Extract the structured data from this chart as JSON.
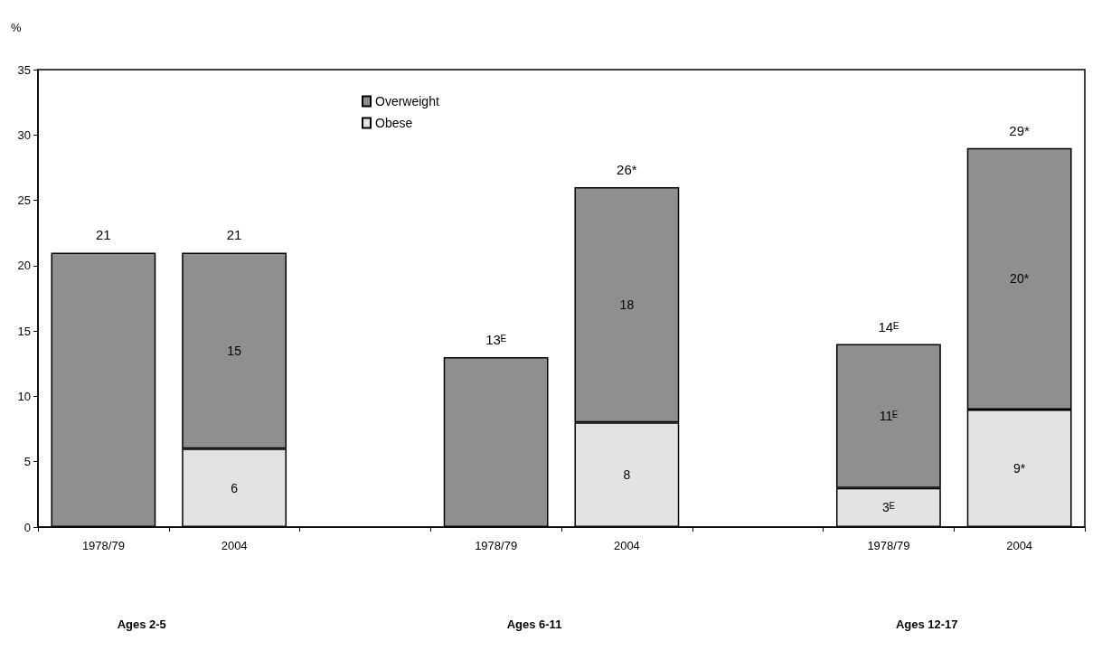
{
  "chart_data": {
    "type": "bar",
    "stacked": true,
    "ylabel": "%",
    "categories": [
      "1978/79",
      "2004",
      null,
      "1978/79",
      "2004",
      null,
      "1978/79",
      "2004"
    ],
    "series": [
      {
        "name": "Obese",
        "color": "#e3e3e3",
        "values": [
          null,
          6,
          null,
          null,
          8,
          null,
          3,
          9
        ],
        "value_labels": [
          null,
          "6",
          null,
          null,
          "8",
          null,
          "3ᴱ",
          "9*"
        ]
      },
      {
        "name": "Overweight",
        "color": "#8f8f8f",
        "values": [
          21,
          15,
          null,
          13,
          18,
          null,
          11,
          20
        ],
        "value_labels": [
          null,
          "15",
          null,
          null,
          "18",
          null,
          "11ᴱ",
          "20*"
        ]
      }
    ],
    "totals": [
      "21",
      "21",
      null,
      "13ᴱ",
      "26*",
      null,
      "14ᴱ",
      "29*"
    ],
    "annotations": [
      "Ages 2-5",
      "Ages 6-11",
      "Ages 12-17"
    ],
    "ylim": [
      0,
      35
    ],
    "yticks": [
      0,
      5,
      10,
      15,
      20,
      25,
      30,
      35
    ],
    "grid": false,
    "legend": "top left"
  }
}
